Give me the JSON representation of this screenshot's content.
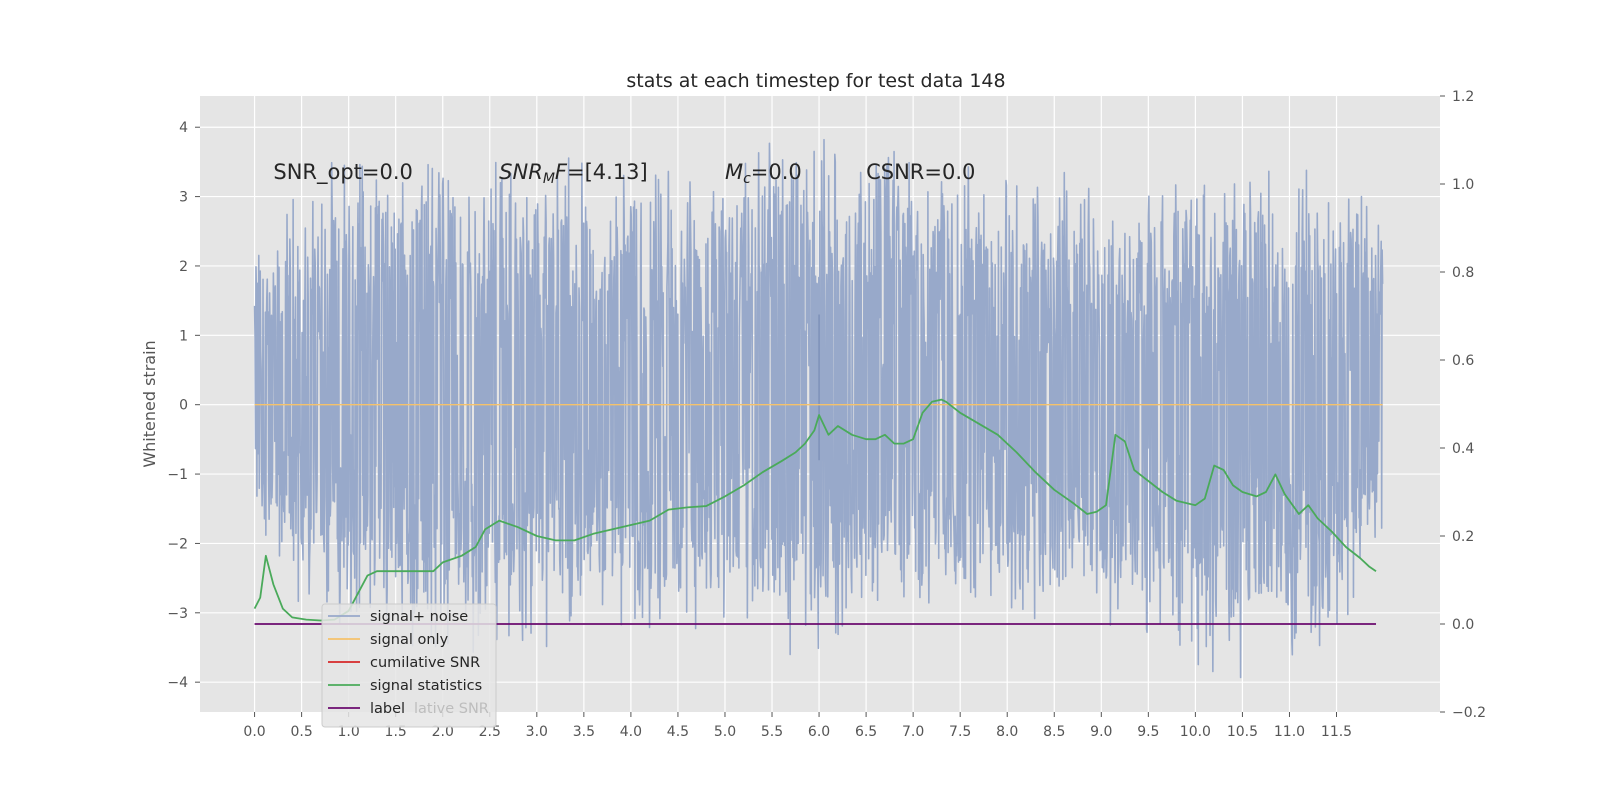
{
  "chart_data": {
    "type": "line",
    "title": "stats at each timestep for test data 148",
    "ylabel": "Whitened strain",
    "y2label": "",
    "xlim": [
      -0.58,
      12.6
    ],
    "ylim": [
      -4.43,
      4.45
    ],
    "y2lim": [
      -0.2,
      1.2
    ],
    "grid": true,
    "x_ticks": [
      0.0,
      0.5,
      1.0,
      1.5,
      2.0,
      2.5,
      3.0,
      3.5,
      4.0,
      4.5,
      5.0,
      5.5,
      6.0,
      6.5,
      7.0,
      7.5,
      8.0,
      8.5,
      9.0,
      9.5,
      10.0,
      10.5,
      11.0,
      11.5
    ],
    "x_tick_labels": [
      "0.0",
      "0.5",
      "1.0",
      "1.5",
      "2.0",
      "2.5",
      "3.0",
      "3.5",
      "4.0",
      "4.5",
      "5.0",
      "5.5",
      "6.0",
      "6.5",
      "7.0",
      "7.5",
      "8.0",
      "8.5",
      "9.0",
      "9.5",
      "10.0",
      "10.5",
      "11.0",
      "11.5"
    ],
    "y_ticks": [
      4,
      3,
      2,
      1,
      0,
      -1,
      -2,
      -3,
      -4
    ],
    "y_tick_labels": [
      "4",
      "3",
      "2",
      "1",
      "0",
      "−1",
      "−2",
      "−3",
      "−4"
    ],
    "y2_ticks": [
      1.2,
      1.0,
      0.8,
      0.6,
      0.4,
      0.2,
      0.0,
      -0.2
    ],
    "y2_tick_labels": [
      "1.2",
      "1.0",
      "0.8",
      "0.6",
      "0.4",
      "0.2",
      "0.0",
      "−0.2"
    ],
    "annotations": [
      {
        "x": 0.2,
        "y": 3.25,
        "html": "SNR_opt=0.0"
      },
      {
        "x": 2.6,
        "y": 3.25,
        "html": "<tspan font-style='italic'>SNR</tspan><tspan font-style='italic' font-size='14' dy='4'>M</tspan><tspan font-style='italic' dy='-4'>F</tspan>=[4.13]"
      },
      {
        "x": 5.0,
        "y": 3.25,
        "html": "<tspan font-style='italic'>M</tspan><tspan font-style='italic' font-size='14' dy='4'>c</tspan><tspan dy='-4'>=0.0</tspan>"
      },
      {
        "x": 6.5,
        "y": 3.25,
        "html": "CSNR=0.0"
      }
    ],
    "legend": {
      "position": "lower-left",
      "entries": [
        "signal+ noise",
        "signal only",
        "cumilative SNR",
        "signal statistics",
        "label"
      ],
      "ghost_text": "lative SNR"
    },
    "series": [
      {
        "name": "signal+ noise",
        "axis": "left",
        "color": "#98a9ca",
        "x_start": 0.0,
        "x_end": 11.99,
        "n_points": 2400,
        "seed": 148,
        "envelope_upper": [
          [
            0.0,
            2.5
          ],
          [
            0.14,
            2.2
          ],
          [
            0.3,
            3.2
          ],
          [
            1.3,
            3.9
          ],
          [
            2.2,
            3.7
          ],
          [
            3.0,
            3.6
          ],
          [
            4.8,
            3.4
          ],
          [
            5.5,
            4.1
          ],
          [
            7.35,
            3.55
          ],
          [
            8.9,
            3.3
          ],
          [
            10.5,
            3.5
          ],
          [
            11.3,
            3.5
          ],
          [
            11.99,
            2.85
          ]
        ],
        "envelope_lower": [
          [
            0.0,
            -1.6
          ],
          [
            0.5,
            -3.0
          ],
          [
            0.8,
            -3.4
          ],
          [
            2.6,
            -3.6
          ],
          [
            3.8,
            -3.4
          ],
          [
            5.8,
            -3.7
          ],
          [
            7.0,
            -3.0
          ],
          [
            8.9,
            -3.2
          ],
          [
            10.2,
            -4.0
          ],
          [
            11.5,
            -3.7
          ],
          [
            11.99,
            -1.9
          ]
        ],
        "spike": {
          "x": 6.0,
          "y_top": 1.3,
          "y_bottom": 0.8
        }
      },
      {
        "name": "signal only",
        "axis": "left",
        "color": "#f5c26b",
        "points": [
          [
            0.0,
            0.0
          ],
          [
            11.99,
            0.0
          ]
        ]
      },
      {
        "name": "cumilative SNR",
        "axis": "right",
        "color": "#d62728",
        "points": []
      },
      {
        "name": "signal statistics",
        "axis": "right",
        "color": "#4aaa5a",
        "points": [
          [
            0.0,
            0.035
          ],
          [
            0.06,
            0.06
          ],
          [
            0.12,
            0.155
          ],
          [
            0.2,
            0.09
          ],
          [
            0.3,
            0.035
          ],
          [
            0.4,
            0.015
          ],
          [
            0.55,
            0.01
          ],
          [
            0.7,
            0.008
          ],
          [
            0.85,
            0.01
          ],
          [
            1.0,
            0.03
          ],
          [
            1.1,
            0.07
          ],
          [
            1.2,
            0.11
          ],
          [
            1.3,
            0.12
          ],
          [
            1.5,
            0.12
          ],
          [
            1.7,
            0.12
          ],
          [
            1.9,
            0.12
          ],
          [
            2.0,
            0.14
          ],
          [
            2.2,
            0.155
          ],
          [
            2.35,
            0.175
          ],
          [
            2.45,
            0.215
          ],
          [
            2.6,
            0.235
          ],
          [
            2.8,
            0.22
          ],
          [
            3.0,
            0.2
          ],
          [
            3.2,
            0.19
          ],
          [
            3.4,
            0.19
          ],
          [
            3.6,
            0.205
          ],
          [
            3.8,
            0.215
          ],
          [
            4.0,
            0.225
          ],
          [
            4.2,
            0.235
          ],
          [
            4.4,
            0.26
          ],
          [
            4.6,
            0.265
          ],
          [
            4.8,
            0.268
          ],
          [
            5.0,
            0.29
          ],
          [
            5.2,
            0.315
          ],
          [
            5.4,
            0.345
          ],
          [
            5.6,
            0.37
          ],
          [
            5.75,
            0.39
          ],
          [
            5.85,
            0.41
          ],
          [
            5.95,
            0.44
          ],
          [
            6.0,
            0.475
          ],
          [
            6.1,
            0.43
          ],
          [
            6.2,
            0.45
          ],
          [
            6.35,
            0.43
          ],
          [
            6.5,
            0.42
          ],
          [
            6.6,
            0.42
          ],
          [
            6.7,
            0.43
          ],
          [
            6.8,
            0.41
          ],
          [
            6.9,
            0.41
          ],
          [
            7.0,
            0.42
          ],
          [
            7.1,
            0.48
          ],
          [
            7.2,
            0.505
          ],
          [
            7.3,
            0.51
          ],
          [
            7.35,
            0.505
          ],
          [
            7.5,
            0.48
          ],
          [
            7.7,
            0.455
          ],
          [
            7.9,
            0.43
          ],
          [
            8.1,
            0.39
          ],
          [
            8.3,
            0.345
          ],
          [
            8.5,
            0.305
          ],
          [
            8.7,
            0.275
          ],
          [
            8.85,
            0.25
          ],
          [
            8.95,
            0.255
          ],
          [
            9.05,
            0.27
          ],
          [
            9.15,
            0.43
          ],
          [
            9.25,
            0.415
          ],
          [
            9.35,
            0.35
          ],
          [
            9.5,
            0.325
          ],
          [
            9.65,
            0.3
          ],
          [
            9.8,
            0.28
          ],
          [
            10.0,
            0.27
          ],
          [
            10.1,
            0.285
          ],
          [
            10.2,
            0.36
          ],
          [
            10.3,
            0.35
          ],
          [
            10.4,
            0.315
          ],
          [
            10.5,
            0.3
          ],
          [
            10.65,
            0.29
          ],
          [
            10.75,
            0.3
          ],
          [
            10.85,
            0.34
          ],
          [
            10.95,
            0.295
          ],
          [
            11.1,
            0.25
          ],
          [
            11.2,
            0.27
          ],
          [
            11.3,
            0.24
          ],
          [
            11.45,
            0.21
          ],
          [
            11.6,
            0.175
          ],
          [
            11.75,
            0.15
          ],
          [
            11.85,
            0.13
          ],
          [
            11.92,
            0.12
          ]
        ]
      },
      {
        "name": "label",
        "axis": "right",
        "color": "#6a0a6e",
        "points": [
          [
            0.0,
            0.0
          ],
          [
            11.92,
            0.0
          ]
        ]
      }
    ]
  }
}
